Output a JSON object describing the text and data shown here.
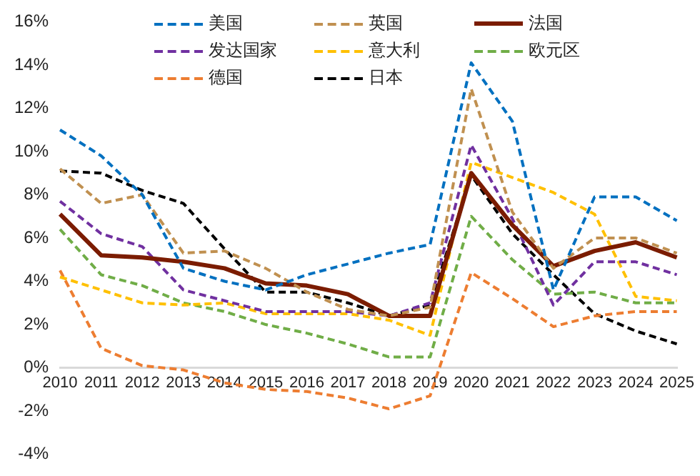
{
  "chart_data": {
    "type": "line",
    "categories": [
      "2010",
      "2011",
      "2012",
      "2013",
      "2014",
      "2015",
      "2016",
      "2017",
      "2018",
      "2019",
      "2020",
      "2021",
      "2022",
      "2023",
      "2024",
      "2025"
    ],
    "ylim": [
      -4,
      16
    ],
    "yticks": [
      {
        "value": -4,
        "label": "-4%"
      },
      {
        "value": -2,
        "label": "-2%"
      },
      {
        "value": 0,
        "label": "0%"
      },
      {
        "value": 2,
        "label": "2%"
      },
      {
        "value": 4,
        "label": "4%"
      },
      {
        "value": 6,
        "label": "6%"
      },
      {
        "value": 8,
        "label": "8%"
      },
      {
        "value": 10,
        "label": "10%"
      },
      {
        "value": 12,
        "label": "12%"
      },
      {
        "value": 14,
        "label": "14%"
      },
      {
        "value": 16,
        "label": "16%"
      }
    ],
    "grid": false,
    "legend": "top",
    "marker": "none",
    "series": [
      {
        "name": "美国",
        "color": "#0070c0",
        "line_style": "dashed",
        "values": [
          11.0,
          9.8,
          8.0,
          4.6,
          4.0,
          3.6,
          4.3,
          4.8,
          5.3,
          5.7,
          14.1,
          11.4,
          3.6,
          7.9,
          7.9,
          6.8
        ]
      },
      {
        "name": "英国",
        "color": "#c09050",
        "line_style": "dashed",
        "values": [
          9.2,
          7.6,
          8.0,
          5.3,
          5.4,
          4.6,
          3.5,
          2.7,
          2.4,
          2.8,
          12.9,
          7.2,
          4.6,
          6.0,
          6.0,
          5.3
        ]
      },
      {
        "name": "法国",
        "color": "#7b1c00",
        "line_style": "solid",
        "values": [
          7.1,
          5.2,
          5.1,
          4.9,
          4.6,
          3.9,
          3.8,
          3.4,
          2.4,
          2.4,
          9.0,
          6.6,
          4.7,
          5.4,
          5.8,
          5.1
        ]
      },
      {
        "name": "发达国家",
        "color": "#7030a0",
        "line_style": "dashed",
        "values": [
          7.7,
          6.2,
          5.6,
          3.6,
          3.1,
          2.6,
          2.6,
          2.6,
          2.4,
          3.0,
          10.3,
          6.9,
          2.9,
          4.9,
          4.9,
          4.3
        ]
      },
      {
        "name": "意大利",
        "color": "#ffc000",
        "line_style": "dashed",
        "values": [
          4.2,
          3.6,
          3.0,
          2.9,
          3.0,
          2.5,
          2.5,
          2.5,
          2.2,
          1.5,
          9.5,
          8.8,
          8.1,
          7.1,
          3.3,
          3.1
        ]
      },
      {
        "name": "欧元区",
        "color": "#70ad47",
        "line_style": "dashed",
        "values": [
          6.4,
          4.3,
          3.8,
          3.0,
          2.6,
          2.0,
          1.6,
          1.1,
          0.5,
          0.5,
          7.0,
          5.0,
          3.4,
          3.5,
          3.0,
          3.0
        ]
      },
      {
        "name": "德国",
        "color": "#ed7d31",
        "line_style": "dashed",
        "values": [
          4.5,
          0.9,
          0.1,
          -0.1,
          -0.7,
          -1.0,
          -1.1,
          -1.4,
          -1.9,
          -1.3,
          4.4,
          3.2,
          1.9,
          2.4,
          2.6,
          2.6
        ]
      },
      {
        "name": "日本",
        "color": "#000000",
        "line_style": "dashed",
        "values": [
          9.1,
          9.0,
          8.2,
          7.6,
          5.5,
          3.5,
          3.5,
          3.0,
          2.4,
          2.9,
          8.9,
          6.2,
          4.3,
          2.5,
          1.7,
          1.1
        ]
      }
    ]
  }
}
